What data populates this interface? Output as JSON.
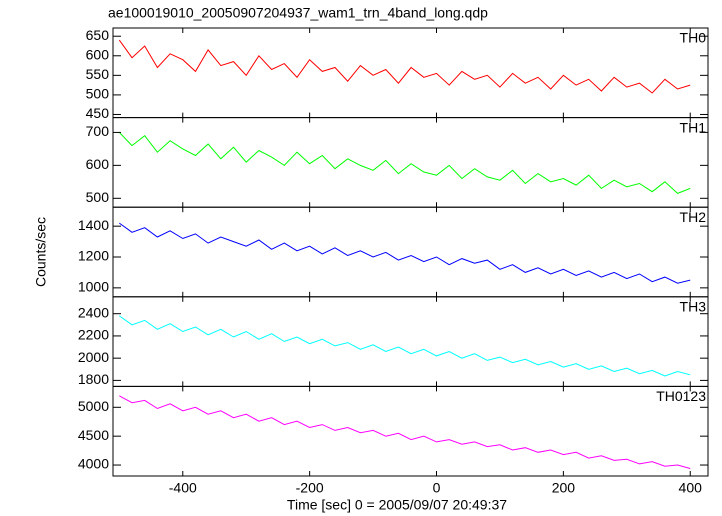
{
  "chart_data": {
    "type": "line",
    "title": "ae100019010_20050907204937_wam1_trn_4band_long.qdp",
    "xlabel": "Time [sec] 0 = 2005/09/07 20:49:37",
    "ylabel": "Counts/sec",
    "xlim": [
      -510,
      428
    ],
    "xticks": [
      -400,
      -200,
      0,
      200,
      400
    ],
    "x": [
      -500,
      -480,
      -460,
      -440,
      -420,
      -400,
      -380,
      -360,
      -340,
      -320,
      -300,
      -280,
      -260,
      -240,
      -220,
      -200,
      -180,
      -160,
      -140,
      -120,
      -100,
      -80,
      -60,
      -40,
      -20,
      0,
      20,
      40,
      60,
      80,
      100,
      120,
      140,
      160,
      180,
      200,
      220,
      240,
      260,
      280,
      300,
      320,
      340,
      360,
      380,
      400
    ],
    "series": [
      {
        "name": "TH0",
        "color": "#ff0000",
        "ylim": [
          442,
          671
        ],
        "yticks": [
          450,
          500,
          550,
          600,
          650
        ],
        "values": [
          640,
          595,
          625,
          570,
          605,
          590,
          560,
          615,
          575,
          585,
          550,
          600,
          565,
          580,
          545,
          590,
          560,
          570,
          535,
          575,
          550,
          565,
          530,
          570,
          545,
          555,
          525,
          560,
          540,
          550,
          520,
          555,
          530,
          545,
          515,
          550,
          525,
          540,
          510,
          545,
          520,
          530,
          505,
          540,
          515,
          525
        ]
      },
      {
        "name": "TH1",
        "color": "#00ff00",
        "ylim": [
          473,
          745
        ],
        "yticks": [
          500,
          600,
          700
        ],
        "values": [
          700,
          660,
          690,
          640,
          675,
          650,
          630,
          665,
          620,
          655,
          610,
          645,
          625,
          600,
          640,
          605,
          630,
          590,
          620,
          600,
          585,
          615,
          575,
          605,
          580,
          570,
          600,
          560,
          590,
          565,
          555,
          585,
          545,
          575,
          550,
          560,
          540,
          570,
          530,
          555,
          535,
          545,
          520,
          550,
          515,
          530
        ]
      },
      {
        "name": "TH2",
        "color": "#0000ff",
        "ylim": [
          942,
          1523
        ],
        "yticks": [
          1000,
          1200,
          1400
        ],
        "values": [
          1420,
          1360,
          1390,
          1330,
          1370,
          1320,
          1350,
          1290,
          1330,
          1300,
          1270,
          1310,
          1250,
          1290,
          1240,
          1270,
          1220,
          1260,
          1210,
          1240,
          1200,
          1230,
          1180,
          1210,
          1170,
          1200,
          1150,
          1190,
          1160,
          1180,
          1120,
          1150,
          1100,
          1130,
          1090,
          1120,
          1080,
          1110,
          1070,
          1100,
          1060,
          1090,
          1040,
          1070,
          1030,
          1050
        ]
      },
      {
        "name": "TH3",
        "color": "#00ffff",
        "ylim": [
          1746,
          2552
        ],
        "yticks": [
          1800,
          2000,
          2200,
          2400
        ],
        "values": [
          2380,
          2300,
          2340,
          2260,
          2310,
          2240,
          2280,
          2210,
          2260,
          2190,
          2240,
          2170,
          2220,
          2150,
          2190,
          2130,
          2170,
          2110,
          2140,
          2080,
          2120,
          2060,
          2100,
          2040,
          2080,
          2020,
          2060,
          2000,
          2040,
          1980,
          2010,
          1960,
          1990,
          1940,
          1970,
          1920,
          1950,
          1900,
          1930,
          1880,
          1910,
          1860,
          1890,
          1840,
          1880,
          1850
        ]
      },
      {
        "name": "TH0123",
        "color": "#ff00ff",
        "ylim": [
          3810,
          5362
        ],
        "yticks": [
          4000,
          4500,
          5000
        ],
        "values": [
          5200,
          5080,
          5120,
          4980,
          5060,
          4940,
          5000,
          4880,
          4940,
          4820,
          4880,
          4760,
          4820,
          4700,
          4760,
          4650,
          4700,
          4600,
          4650,
          4560,
          4600,
          4500,
          4550,
          4440,
          4500,
          4400,
          4440,
          4360,
          4400,
          4320,
          4350,
          4260,
          4300,
          4220,
          4260,
          4180,
          4220,
          4120,
          4160,
          4080,
          4100,
          4020,
          4060,
          3980,
          4000,
          3940
        ]
      }
    ]
  }
}
